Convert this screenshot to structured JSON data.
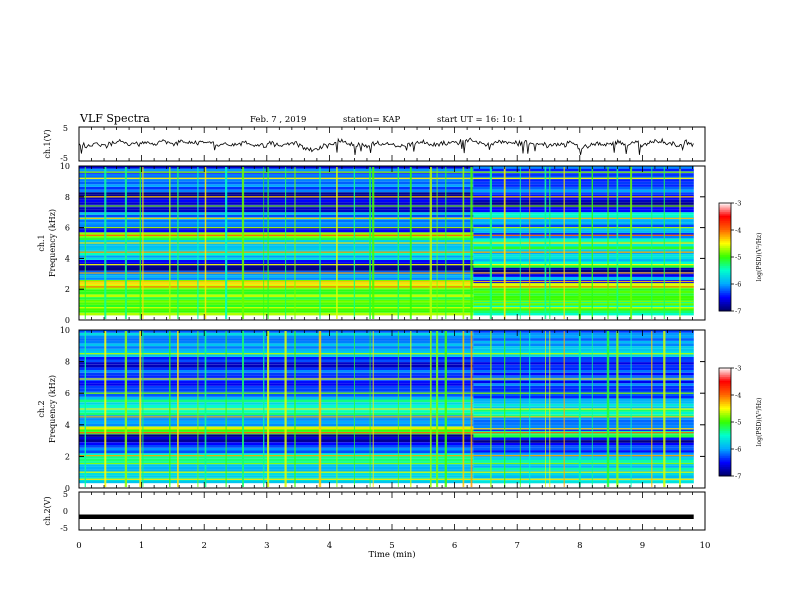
{
  "header": {
    "title": "VLF Spectra",
    "date": "Feb. 7 , 2019",
    "station": "station= KAP",
    "start": "start  UT =   16: 10: 1"
  },
  "colorbar": {
    "label": "log(PSD)(V²/Hz)",
    "ticks": [
      "-3",
      "-4",
      "-5",
      "-6",
      "-7"
    ],
    "range": [
      -7,
      -3
    ],
    "colors": [
      "#000066",
      "#0000ff",
      "#00aaff",
      "#00ffcc",
      "#33ff00",
      "#ffff00",
      "#ff6600",
      "#ff0000",
      "#ffffff"
    ]
  },
  "chart_data": [
    {
      "type": "line",
      "name": "ch1-waveform",
      "ylabel": "ch.1(V)",
      "ylim": [
        -5,
        5
      ],
      "yticks": [
        "5",
        "-5"
      ],
      "xlim": [
        0,
        10
      ],
      "x_end": 9.82,
      "description_series": "noisy trace near 0 V with dips to about -2 V"
    },
    {
      "type": "heatmap",
      "name": "ch1-spectrogram",
      "ylabel_line1": "ch.1",
      "ylabel_line2": "Frequency (kHz)",
      "ylim": [
        0,
        10
      ],
      "yticks": [
        "0",
        "2",
        "4",
        "6",
        "8",
        "10"
      ],
      "xlim": [
        0,
        10
      ],
      "x_end": 9.82,
      "change_time": 6.3,
      "bands_before": [
        [
          0.3,
          2.0,
          -5.0
        ],
        [
          2.0,
          2.6,
          -4.6
        ],
        [
          2.6,
          3.2,
          -6.0
        ],
        [
          3.2,
          3.9,
          -6.6
        ],
        [
          3.9,
          4.5,
          -5.8
        ],
        [
          4.5,
          5.2,
          -6.1
        ],
        [
          5.2,
          5.7,
          -5.0
        ],
        [
          5.7,
          6.2,
          -6.3
        ],
        [
          6.2,
          7.0,
          -6.0
        ],
        [
          7.0,
          8.3,
          -6.6
        ],
        [
          8.3,
          10.0,
          -6.3
        ]
      ],
      "bands_after": [
        [
          0.3,
          1.9,
          -5.2
        ],
        [
          1.9,
          2.4,
          -4.8
        ],
        [
          2.4,
          2.8,
          -6.2
        ],
        [
          2.8,
          3.4,
          -6.6
        ],
        [
          3.4,
          3.8,
          -5.3
        ],
        [
          3.8,
          4.6,
          -6.0
        ],
        [
          4.6,
          5.3,
          -5.4
        ],
        [
          5.3,
          6.2,
          -6.2
        ],
        [
          6.2,
          7.0,
          -5.8
        ],
        [
          7.0,
          8.3,
          -6.6
        ],
        [
          8.3,
          10.0,
          -6.2
        ]
      ],
      "lines": [
        [
          0.8,
          -4.6
        ],
        [
          1.2,
          -4.8
        ],
        [
          2.15,
          -4.0
        ],
        [
          2.5,
          -4.3
        ],
        [
          3.05,
          -4.2
        ],
        [
          3.6,
          -4.5
        ],
        [
          4.4,
          -4.2
        ],
        [
          5.0,
          -4.4
        ],
        [
          5.5,
          -4.0
        ],
        [
          6.0,
          -4.7
        ],
        [
          6.6,
          -4.3
        ],
        [
          7.4,
          -4.8
        ],
        [
          8.0,
          -4.3
        ],
        [
          9.2,
          -4.5
        ],
        [
          9.6,
          -4.8
        ]
      ],
      "spike_times": [
        0.1,
        0.42,
        0.75,
        0.98,
        1.02,
        1.45,
        1.58,
        1.9,
        2.02,
        2.35,
        2.62,
        2.95,
        3.02,
        3.3,
        3.45,
        3.85,
        4.12,
        4.4,
        4.65,
        4.7,
        5.1,
        5.3,
        5.62,
        5.72,
        5.86,
        6.14,
        6.27,
        6.58,
        6.8,
        7.05,
        7.2,
        7.45,
        7.52,
        7.75,
        8.0,
        8.2,
        8.45,
        8.6,
        8.82,
        9.15,
        9.35,
        9.6
      ]
    },
    {
      "type": "heatmap",
      "name": "ch2-spectrogram",
      "ylabel_line1": "ch.2",
      "ylabel_line2": "Frequency (kHz)",
      "ylim": [
        0,
        10
      ],
      "yticks": [
        "0",
        "2",
        "4",
        "6",
        "8",
        "10"
      ],
      "xlim": [
        0,
        10
      ],
      "x_end": 9.82,
      "change_time": 6.3,
      "bands_before": [
        [
          0.3,
          2.2,
          -5.6
        ],
        [
          2.2,
          2.9,
          -6.2
        ],
        [
          2.9,
          3.4,
          -6.7
        ],
        [
          3.4,
          3.9,
          -4.8
        ],
        [
          3.9,
          4.6,
          -6.0
        ],
        [
          4.6,
          5.6,
          -5.4
        ],
        [
          5.6,
          6.3,
          -6.0
        ],
        [
          6.3,
          8.3,
          -6.4
        ],
        [
          8.3,
          10.0,
          -6.0
        ]
      ],
      "bands_after": [
        [
          0.3,
          2.1,
          -5.7
        ],
        [
          2.1,
          2.7,
          -6.4
        ],
        [
          2.7,
          3.2,
          -6.7
        ],
        [
          3.2,
          3.6,
          -5.0
        ],
        [
          3.6,
          4.5,
          -6.1
        ],
        [
          4.5,
          5.5,
          -5.6
        ],
        [
          5.5,
          6.3,
          -6.2
        ],
        [
          6.3,
          8.3,
          -6.3
        ],
        [
          8.3,
          10.0,
          -6.0
        ]
      ],
      "lines": [
        [
          0.55,
          -4.4
        ],
        [
          1.0,
          -4.6
        ],
        [
          1.55,
          -4.8
        ],
        [
          2.05,
          -4.2
        ],
        [
          3.5,
          -4.0
        ],
        [
          3.75,
          -4.4
        ],
        [
          4.5,
          -4.3
        ],
        [
          5.0,
          -4.5
        ],
        [
          6.0,
          -4.8
        ],
        [
          6.9,
          -4.4
        ],
        [
          8.5,
          -4.7
        ]
      ],
      "spike_times": [
        0.1,
        0.42,
        0.75,
        0.98,
        1.02,
        1.45,
        1.58,
        1.9,
        2.02,
        2.35,
        2.62,
        2.95,
        3.02,
        3.3,
        3.45,
        3.85,
        4.12,
        4.4,
        4.65,
        4.7,
        5.1,
        5.3,
        5.62,
        5.72,
        5.86,
        6.14,
        6.27,
        6.58,
        6.8,
        7.05,
        7.2,
        7.45,
        7.52,
        7.75,
        8.0,
        8.2,
        8.45,
        8.6,
        8.82,
        9.15,
        9.35,
        9.6
      ]
    },
    {
      "type": "line",
      "name": "ch2-waveform",
      "ylabel": "ch.2(V)",
      "ylim": [
        -5,
        5
      ],
      "yticks": [
        "5",
        "0",
        "-5"
      ],
      "xlim": [
        0,
        10
      ],
      "x_end": 9.82,
      "constant_value": -1.5,
      "xlabel": "Time  (min)",
      "xticks": [
        "0",
        "1",
        "2",
        "3",
        "4",
        "5",
        "6",
        "7",
        "8",
        "9",
        "10"
      ]
    }
  ]
}
